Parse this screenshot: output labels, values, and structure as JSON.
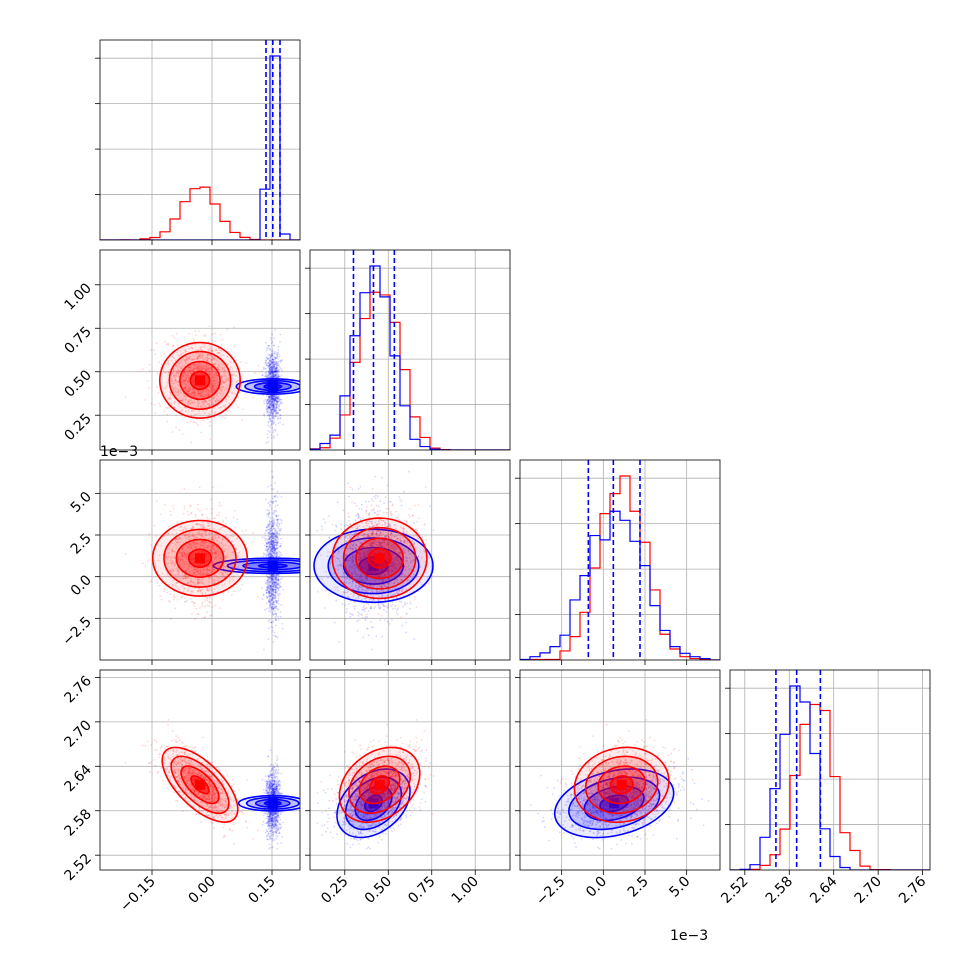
{
  "chart_data": {
    "type": "corner",
    "parameters": [
      {
        "range": [
          -0.28,
          0.22
        ],
        "ticks": [
          -0.15,
          0.0,
          0.15
        ],
        "tick_labels": [
          "−0.15",
          "0.00",
          "0.15"
        ],
        "truths": [
          0.135,
          0.152,
          0.17
        ]
      },
      {
        "range": [
          0.05,
          1.2
        ],
        "ticks": [
          0.25,
          0.5,
          0.75,
          1.0
        ],
        "tick_labels": [
          "0.25",
          "0.50",
          "0.75",
          "1.00"
        ],
        "truths": [
          0.3,
          0.415,
          0.535
        ]
      },
      {
        "range": [
          -5.0,
          7.0
        ],
        "ticks": [
          -2.5,
          0.0,
          2.5,
          5.0
        ],
        "tick_labels": [
          "−2.5",
          "0.0",
          "2.5",
          "5.0"
        ],
        "offset_label": "1e−3",
        "truths": [
          -0.9,
          0.6,
          2.2
        ]
      },
      {
        "range": [
          2.5,
          2.77
        ],
        "ticks": [
          2.52,
          2.58,
          2.64,
          2.7,
          2.76
        ],
        "tick_labels": [
          "2.52",
          "2.58",
          "2.64",
          "2.70",
          "2.76"
        ],
        "truths": [
          2.562,
          2.59,
          2.622
        ]
      }
    ],
    "series": [
      {
        "color": "#ff0000",
        "mean": [
          -0.03,
          0.45,
          0.0011,
          2.615
        ],
        "std": [
          0.045,
          0.11,
          0.00135,
          0.024
        ],
        "corr": [
          [
            1,
            0,
            0,
            -0.65
          ],
          [
            0,
            1,
            0,
            0.3
          ],
          [
            0,
            0,
            1,
            0.1
          ],
          [
            -0.65,
            0.3,
            0.1,
            1
          ]
        ]
      },
      {
        "color": "#0000ff",
        "mean": [
          0.152,
          0.415,
          0.00065,
          2.59
        ],
        "std": [
          0.009,
          0.1,
          0.0017,
          0.022
        ],
        "corr": [
          [
            1,
            0,
            0,
            0
          ],
          [
            0,
            1,
            0,
            0.35
          ],
          [
            0,
            0,
            1,
            0.3
          ],
          [
            0,
            0.35,
            0.3,
            1
          ]
        ]
      }
    ],
    "grid": true,
    "truth_color": "#0000ff"
  }
}
